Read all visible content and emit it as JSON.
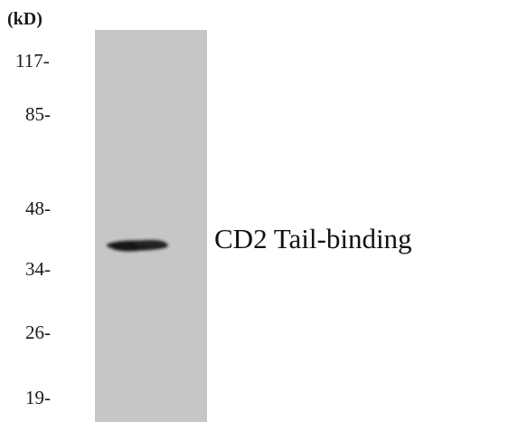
{
  "unit_label": "(kD)",
  "markers": [
    {
      "label": "117-",
      "kd": 117
    },
    {
      "label": "85-",
      "kd": 85
    },
    {
      "label": "48-",
      "kd": 48
    },
    {
      "label": "34-",
      "kd": 34
    },
    {
      "label": "26-",
      "kd": 26
    },
    {
      "label": "19-",
      "kd": 19
    }
  ],
  "band": {
    "protein_label": "CD2 Tail-binding",
    "lane": 1
  },
  "colors": {
    "lane": "#c6c6c6",
    "band": "#1b1b1b",
    "text": "#1a1a1a"
  }
}
